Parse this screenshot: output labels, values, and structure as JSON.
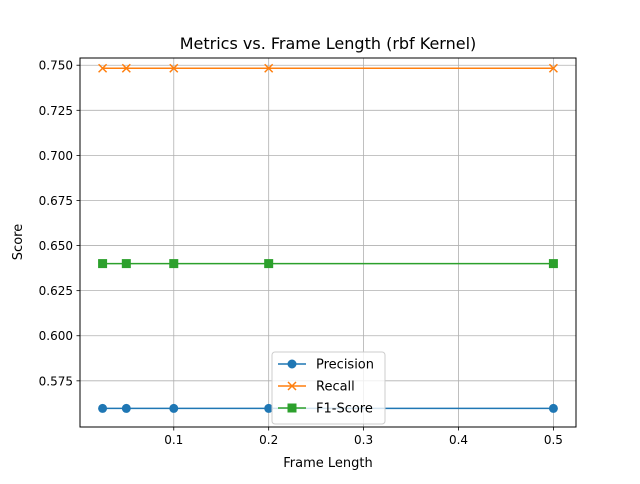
{
  "chart_data": {
    "type": "line",
    "title": "Metrics vs. Frame Length (rbf Kernel)",
    "xlabel": "Frame Length",
    "ylabel": "Score",
    "x": [
      0.025,
      0.05,
      0.1,
      0.2,
      0.5
    ],
    "xlim": [
      0.0012,
      0.5238
    ],
    "ylim": [
      0.5494,
      0.754
    ],
    "xticks": [
      0.1,
      0.2,
      0.3,
      0.4,
      0.5
    ],
    "xtick_labels": [
      "0.1",
      "0.2",
      "0.3",
      "0.4",
      "0.5"
    ],
    "yticks": [
      0.575,
      0.6,
      0.625,
      0.65,
      0.675,
      0.7,
      0.725,
      0.75
    ],
    "ytick_labels": [
      "0.575",
      "0.600",
      "0.625",
      "0.650",
      "0.675",
      "0.700",
      "0.725",
      "0.750"
    ],
    "grid": true,
    "legend_position": "lower-center",
    "series": [
      {
        "name": "Precision",
        "values": [
          0.5597,
          0.5597,
          0.5597,
          0.5597,
          0.5597
        ],
        "color": "#1f77b4",
        "marker": "circle"
      },
      {
        "name": "Recall",
        "values": [
          0.7483,
          0.7483,
          0.7483,
          0.7483,
          0.7483
        ],
        "color": "#ff7f0e",
        "marker": "x"
      },
      {
        "name": "F1-Score",
        "values": [
          0.64,
          0.64,
          0.64,
          0.64,
          0.64
        ],
        "color": "#2ca02c",
        "marker": "square"
      }
    ]
  }
}
